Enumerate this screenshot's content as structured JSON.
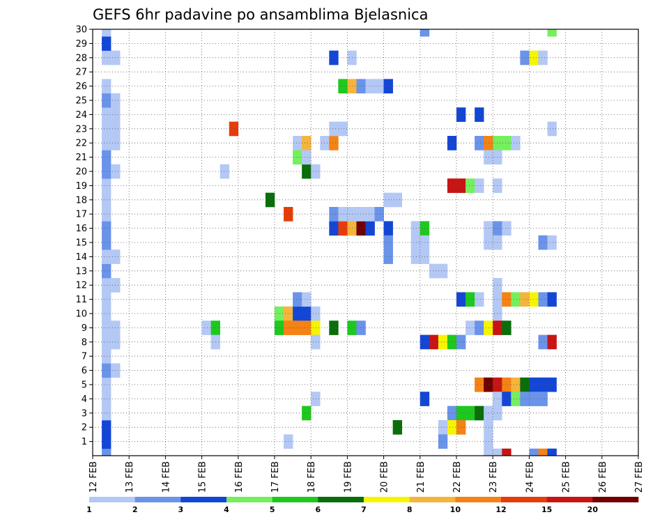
{
  "chart_data": {
    "type": "heatmap",
    "title": "GEFS 6hr padavine po ansamblima Bjelasnica",
    "ylim": [
      0,
      30
    ],
    "y_ticks": [
      "1",
      "2",
      "3",
      "4",
      "5",
      "6",
      "7",
      "8",
      "9",
      "10",
      "11",
      "12",
      "13",
      "14",
      "15",
      "16",
      "17",
      "18",
      "19",
      "20",
      "21",
      "22",
      "23",
      "24",
      "25",
      "26",
      "27",
      "28",
      "29",
      "30"
    ],
    "x_ticks": [
      "12 FEB",
      "13 FEB",
      "14 FEB",
      "15 FEB",
      "16 FEB",
      "17 FEB",
      "18 FEB",
      "19 FEB",
      "20 FEB",
      "21 FEB",
      "22 FEB",
      "23 FEB",
      "24 FEB",
      "25 FEB",
      "26 FEB",
      "27 FEB"
    ],
    "grid": true,
    "colorbar": {
      "labels": [
        "1",
        "2",
        "3",
        "4",
        "5",
        "6",
        "7",
        "8",
        "10",
        "12",
        "15",
        "20"
      ],
      "colors": [
        "#b4c8f5",
        "#6a93ea",
        "#1446d6",
        "#75ef5d",
        "#1ec81e",
        "#0a6e0a",
        "#f5f500",
        "#f5b43c",
        "#f58214",
        "#e63c0a",
        "#c81414",
        "#700000"
      ]
    },
    "cells": [
      [
        1,
        0,
        2
      ],
      [
        1,
        1,
        3
      ],
      [
        1,
        2,
        3
      ],
      [
        1,
        3,
        1
      ],
      [
        1,
        4,
        1
      ],
      [
        1,
        5,
        1
      ],
      [
        1,
        6,
        2
      ],
      [
        2,
        6,
        1
      ],
      [
        1,
        7,
        1
      ],
      [
        1,
        8,
        1
      ],
      [
        2,
        8,
        1
      ],
      [
        1,
        9,
        1
      ],
      [
        2,
        9,
        1
      ],
      [
        1,
        10,
        1
      ],
      [
        1,
        11,
        1
      ],
      [
        1,
        12,
        1
      ],
      [
        2,
        12,
        1
      ],
      [
        1,
        13,
        2
      ],
      [
        1,
        14,
        1
      ],
      [
        2,
        14,
        1
      ],
      [
        1,
        15,
        2
      ],
      [
        1,
        16,
        2
      ],
      [
        1,
        17,
        1
      ],
      [
        1,
        18,
        1
      ],
      [
        1,
        19,
        1
      ],
      [
        1,
        20,
        2
      ],
      [
        2,
        20,
        1
      ],
      [
        1,
        21,
        2
      ],
      [
        1,
        22,
        1
      ],
      [
        2,
        22,
        1
      ],
      [
        1,
        23,
        1
      ],
      [
        2,
        23,
        1
      ],
      [
        1,
        24,
        1
      ],
      [
        2,
        24,
        1
      ],
      [
        1,
        25,
        2
      ],
      [
        2,
        25,
        1
      ],
      [
        1,
        26,
        1
      ],
      [
        1,
        28,
        1
      ],
      [
        2,
        28,
        1
      ],
      [
        1,
        29,
        3
      ],
      [
        1,
        30,
        1
      ],
      [
        12,
        9,
        1
      ],
      [
        13,
        9,
        5
      ],
      [
        13,
        8,
        1
      ],
      [
        14,
        20,
        1
      ],
      [
        15,
        23,
        10
      ],
      [
        19,
        18,
        6
      ],
      [
        20,
        10,
        4
      ],
      [
        20,
        9,
        5
      ],
      [
        21,
        10,
        8
      ],
      [
        21,
        9,
        9
      ],
      [
        21,
        17,
        10
      ],
      [
        21,
        1,
        1
      ],
      [
        22,
        22,
        1
      ],
      [
        22,
        21,
        4
      ],
      [
        22,
        10,
        3
      ],
      [
        22,
        9,
        9
      ],
      [
        22,
        11,
        2
      ],
      [
        23,
        22,
        8
      ],
      [
        23,
        10,
        3
      ],
      [
        23,
        9,
        9
      ],
      [
        23,
        20,
        6
      ],
      [
        23,
        21,
        1
      ],
      [
        23,
        11,
        1
      ],
      [
        23,
        3,
        5
      ],
      [
        24,
        20,
        1
      ],
      [
        24,
        10,
        1
      ],
      [
        24,
        9,
        7
      ],
      [
        24,
        8,
        1
      ],
      [
        24,
        4,
        1
      ],
      [
        25,
        22,
        1
      ],
      [
        26,
        28,
        3
      ],
      [
        26,
        16,
        3
      ],
      [
        26,
        17,
        2
      ],
      [
        26,
        22,
        9
      ],
      [
        26,
        23,
        1
      ],
      [
        26,
        9,
        6
      ],
      [
        27,
        26,
        5
      ],
      [
        27,
        16,
        10
      ],
      [
        27,
        17,
        1
      ],
      [
        27,
        23,
        1
      ],
      [
        28,
        26,
        8
      ],
      [
        28,
        16,
        8
      ],
      [
        28,
        17,
        1
      ],
      [
        28,
        9,
        5
      ],
      [
        28,
        28,
        1
      ],
      [
        29,
        26,
        2
      ],
      [
        29,
        16,
        12
      ],
      [
        29,
        17,
        1
      ],
      [
        29,
        9,
        2
      ],
      [
        30,
        26,
        1
      ],
      [
        30,
        16,
        3
      ],
      [
        30,
        17,
        1
      ],
      [
        31,
        26,
        1
      ],
      [
        31,
        17,
        2
      ],
      [
        32,
        26,
        3
      ],
      [
        32,
        16,
        3
      ],
      [
        32,
        15,
        2
      ],
      [
        32,
        14,
        2
      ],
      [
        32,
        18,
        1
      ],
      [
        33,
        18,
        1
      ],
      [
        33,
        2,
        6
      ],
      [
        35,
        15,
        1
      ],
      [
        35,
        16,
        1
      ],
      [
        35,
        14,
        1
      ],
      [
        36,
        16,
        5
      ],
      [
        36,
        15,
        1
      ],
      [
        36,
        14,
        1
      ],
      [
        36,
        30,
        2
      ],
      [
        36,
        8,
        3
      ],
      [
        36,
        4,
        3
      ],
      [
        37,
        8,
        11
      ],
      [
        37,
        13,
        1
      ],
      [
        38,
        8,
        7
      ],
      [
        38,
        13,
        1
      ],
      [
        38,
        2,
        1
      ],
      [
        38,
        1,
        2
      ],
      [
        39,
        8,
        5
      ],
      [
        39,
        22,
        3
      ],
      [
        39,
        19,
        11
      ],
      [
        39,
        3,
        2
      ],
      [
        39,
        2,
        7
      ],
      [
        40,
        8,
        2
      ],
      [
        40,
        3,
        5
      ],
      [
        40,
        2,
        9
      ],
      [
        40,
        24,
        3
      ],
      [
        40,
        11,
        3
      ],
      [
        40,
        19,
        11
      ],
      [
        41,
        19,
        4
      ],
      [
        41,
        3,
        5
      ],
      [
        41,
        11,
        5
      ],
      [
        41,
        9,
        1
      ],
      [
        42,
        22,
        2
      ],
      [
        42,
        19,
        1
      ],
      [
        42,
        11,
        1
      ],
      [
        42,
        9,
        2
      ],
      [
        42,
        5,
        9
      ],
      [
        42,
        3,
        6
      ],
      [
        42,
        24,
        3
      ],
      [
        43,
        22,
        9
      ],
      [
        43,
        21,
        1
      ],
      [
        43,
        16,
        1
      ],
      [
        43,
        15,
        1
      ],
      [
        43,
        9,
        7
      ],
      [
        43,
        5,
        12
      ],
      [
        43,
        2,
        1
      ],
      [
        43,
        3,
        1
      ],
      [
        43,
        1,
        1
      ],
      [
        43,
        0,
        1
      ],
      [
        44,
        22,
        4
      ],
      [
        44,
        21,
        1
      ],
      [
        44,
        19,
        1
      ],
      [
        44,
        16,
        2
      ],
      [
        44,
        15,
        1
      ],
      [
        44,
        12,
        1
      ],
      [
        44,
        11,
        1
      ],
      [
        44,
        10,
        1
      ],
      [
        44,
        9,
        11
      ],
      [
        44,
        5,
        11
      ],
      [
        44,
        4,
        1
      ],
      [
        44,
        3,
        1
      ],
      [
        44,
        0,
        1
      ],
      [
        45,
        22,
        4
      ],
      [
        45,
        16,
        1
      ],
      [
        45,
        11,
        9
      ],
      [
        45,
        9,
        6
      ],
      [
        45,
        5,
        9
      ],
      [
        45,
        4,
        3
      ],
      [
        45,
        0,
        11
      ],
      [
        46,
        22,
        1
      ],
      [
        46,
        11,
        4
      ],
      [
        46,
        5,
        8
      ],
      [
        46,
        4,
        4
      ],
      [
        47,
        28,
        2
      ],
      [
        47,
        11,
        8
      ],
      [
        47,
        5,
        6
      ],
      [
        47,
        4,
        2
      ],
      [
        48,
        28,
        7
      ],
      [
        48,
        11,
        7
      ],
      [
        48,
        5,
        3
      ],
      [
        48,
        4,
        2
      ],
      [
        48,
        0,
        2
      ],
      [
        49,
        28,
        1
      ],
      [
        49,
        15,
        2
      ],
      [
        49,
        11,
        2
      ],
      [
        49,
        8,
        2
      ],
      [
        49,
        5,
        3
      ],
      [
        49,
        4,
        2
      ],
      [
        49,
        0,
        9
      ],
      [
        50,
        30,
        4
      ],
      [
        50,
        23,
        1
      ],
      [
        50,
        15,
        1
      ],
      [
        50,
        11,
        3
      ],
      [
        50,
        8,
        11
      ],
      [
        50,
        5,
        3
      ],
      [
        50,
        0,
        3
      ]
    ]
  }
}
